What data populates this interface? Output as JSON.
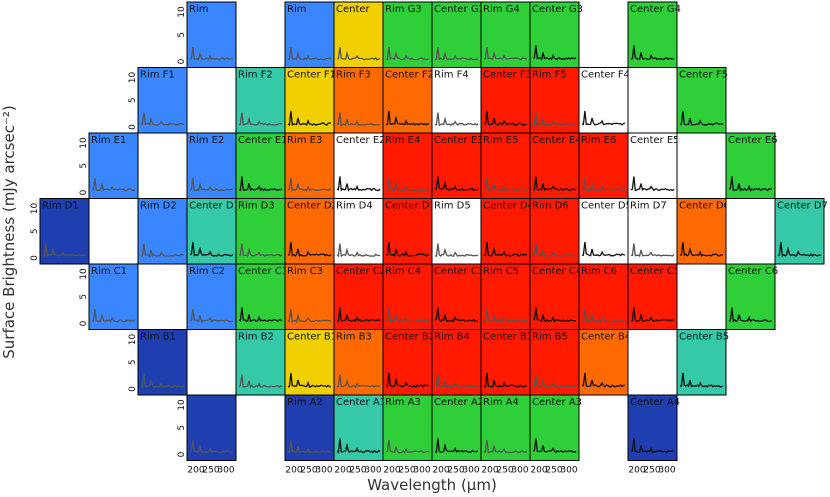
{
  "chart_data": {
    "type": "grid-of-spectra",
    "background": "surface-brightness map",
    "xlabel": "Wavelength (μm)",
    "ylabel": "Surface Brightness (mJy arcsec⁻²)",
    "x_ticks": [
      "200",
      "250",
      "300"
    ],
    "y_ticks": [
      "0",
      "5",
      "10"
    ],
    "panel_colors": {
      "red": "#ff1a00",
      "orange": "#ff6a00",
      "yellow": "#f0d000",
      "green": "#2fcf3a",
      "cyan": "#35c9a8",
      "blue": "#3a86ff",
      "darkblue": "#1f3fb0",
      "white": "#ffffff"
    },
    "panels": [
      {
        "label": "Rim",
        "row": 0,
        "col": 3,
        "color": "blue",
        "spectrum": "gray"
      },
      {
        "label": "Rim",
        "row": 0,
        "col": 5,
        "color": "blue",
        "spectrum": "gray"
      },
      {
        "label": "Center",
        "row": 0,
        "col": 6,
        "color": "yellow",
        "spectrum": "gray"
      },
      {
        "label": "Rim G3",
        "row": 0,
        "col": 7,
        "color": "green",
        "spectrum": "gray"
      },
      {
        "label": "Center G2",
        "row": 0,
        "col": 8,
        "color": "green",
        "spectrum": "gray"
      },
      {
        "label": "Rim G4",
        "row": 0,
        "col": 9,
        "color": "green",
        "spectrum": "gray"
      },
      {
        "label": "Center G3",
        "row": 0,
        "col": 10,
        "color": "green",
        "spectrum": "black"
      },
      {
        "label": "Center G4",
        "row": 0,
        "col": 12,
        "color": "green",
        "spectrum": "black"
      },
      {
        "label": "Rim F1",
        "row": 1,
        "col": 2,
        "color": "blue",
        "spectrum": "gray"
      },
      {
        "label": "Rim F2",
        "row": 1,
        "col": 4,
        "color": "cyan",
        "spectrum": "gray"
      },
      {
        "label": "Center F1",
        "row": 1,
        "col": 5,
        "color": "yellow",
        "spectrum": "black"
      },
      {
        "label": "Rim F3",
        "row": 1,
        "col": 6,
        "color": "orange",
        "spectrum": "gray"
      },
      {
        "label": "Center F2",
        "row": 1,
        "col": 7,
        "color": "orange",
        "spectrum": "black"
      },
      {
        "label": "Rim F4",
        "row": 1,
        "col": 8,
        "color": "white",
        "spectrum": "gray"
      },
      {
        "label": "Center F3",
        "row": 1,
        "col": 9,
        "color": "red",
        "spectrum": "black"
      },
      {
        "label": "Rim F5",
        "row": 1,
        "col": 10,
        "color": "red",
        "spectrum": "gray"
      },
      {
        "label": "Center F4",
        "row": 1,
        "col": 11,
        "color": "white",
        "spectrum": "black"
      },
      {
        "label": "Center F5",
        "row": 1,
        "col": 13,
        "color": "green",
        "spectrum": "black"
      },
      {
        "label": "Rim E1",
        "row": 2,
        "col": 1,
        "color": "blue",
        "spectrum": "gray"
      },
      {
        "label": "Rim E2",
        "row": 2,
        "col": 3,
        "color": "blue",
        "spectrum": "gray"
      },
      {
        "label": "Center E1",
        "row": 2,
        "col": 4,
        "color": "green",
        "spectrum": "black"
      },
      {
        "label": "Rim E3",
        "row": 2,
        "col": 5,
        "color": "orange",
        "spectrum": "gray"
      },
      {
        "label": "Center E2",
        "row": 2,
        "col": 6,
        "color": "white",
        "spectrum": "black"
      },
      {
        "label": "Rim E4",
        "row": 2,
        "col": 7,
        "color": "red",
        "spectrum": "gray"
      },
      {
        "label": "Center E3",
        "row": 2,
        "col": 8,
        "color": "red",
        "spectrum": "black"
      },
      {
        "label": "Rim E5",
        "row": 2,
        "col": 9,
        "color": "red",
        "spectrum": "gray"
      },
      {
        "label": "Center E4",
        "row": 2,
        "col": 10,
        "color": "red",
        "spectrum": "black"
      },
      {
        "label": "Rim E6",
        "row": 2,
        "col": 11,
        "color": "red",
        "spectrum": "gray"
      },
      {
        "label": "Center E5",
        "row": 2,
        "col": 12,
        "color": "white",
        "spectrum": "black"
      },
      {
        "label": "Center E6",
        "row": 2,
        "col": 14,
        "color": "green",
        "spectrum": "black"
      },
      {
        "label": "Rim D1",
        "row": 3,
        "col": 0,
        "color": "darkblue",
        "spectrum": "gray"
      },
      {
        "label": "Rim D2",
        "row": 3,
        "col": 2,
        "color": "blue",
        "spectrum": "gray"
      },
      {
        "label": "Center D1",
        "row": 3,
        "col": 3,
        "color": "cyan",
        "spectrum": "black"
      },
      {
        "label": "Rim D3",
        "row": 3,
        "col": 4,
        "color": "green",
        "spectrum": "gray"
      },
      {
        "label": "Center D2",
        "row": 3,
        "col": 5,
        "color": "orange",
        "spectrum": "black"
      },
      {
        "label": "Rim D4",
        "row": 3,
        "col": 6,
        "color": "white",
        "spectrum": "gray"
      },
      {
        "label": "Center D3",
        "row": 3,
        "col": 7,
        "color": "red",
        "spectrum": "black"
      },
      {
        "label": "Rim D5",
        "row": 3,
        "col": 8,
        "color": "white",
        "spectrum": "gray"
      },
      {
        "label": "Center D4",
        "row": 3,
        "col": 9,
        "color": "red",
        "spectrum": "black"
      },
      {
        "label": "Rim D6",
        "row": 3,
        "col": 10,
        "color": "red",
        "spectrum": "gray"
      },
      {
        "label": "Center D5",
        "row": 3,
        "col": 11,
        "color": "white",
        "spectrum": "black"
      },
      {
        "label": "Rim D7",
        "row": 3,
        "col": 12,
        "color": "white",
        "spectrum": "gray"
      },
      {
        "label": "Center D6",
        "row": 3,
        "col": 13,
        "color": "orange",
        "spectrum": "black"
      },
      {
        "label": "Center D7",
        "row": 3,
        "col": 15,
        "color": "cyan",
        "spectrum": "black"
      },
      {
        "label": "Rim C1",
        "row": 4,
        "col": 1,
        "color": "blue",
        "spectrum": "gray"
      },
      {
        "label": "Rim C2",
        "row": 4,
        "col": 3,
        "color": "blue",
        "spectrum": "gray"
      },
      {
        "label": "Center C1",
        "row": 4,
        "col": 4,
        "color": "green",
        "spectrum": "black"
      },
      {
        "label": "Rim C3",
        "row": 4,
        "col": 5,
        "color": "orange",
        "spectrum": "gray"
      },
      {
        "label": "Center C2",
        "row": 4,
        "col": 6,
        "color": "red",
        "spectrum": "black"
      },
      {
        "label": "Rim C4",
        "row": 4,
        "col": 7,
        "color": "red",
        "spectrum": "gray"
      },
      {
        "label": "Center C3",
        "row": 4,
        "col": 8,
        "color": "red",
        "spectrum": "black"
      },
      {
        "label": "Rim C5",
        "row": 4,
        "col": 9,
        "color": "red",
        "spectrum": "gray"
      },
      {
        "label": "Center C4",
        "row": 4,
        "col": 10,
        "color": "red",
        "spectrum": "black"
      },
      {
        "label": "Rim C6",
        "row": 4,
        "col": 11,
        "color": "red",
        "spectrum": "gray"
      },
      {
        "label": "Center C5",
        "row": 4,
        "col": 12,
        "color": "red",
        "spectrum": "black"
      },
      {
        "label": "Center C6",
        "row": 4,
        "col": 14,
        "color": "green",
        "spectrum": "black"
      },
      {
        "label": "Rim B1",
        "row": 5,
        "col": 2,
        "color": "darkblue",
        "spectrum": "gray"
      },
      {
        "label": "Rim B2",
        "row": 5,
        "col": 4,
        "color": "cyan",
        "spectrum": "gray"
      },
      {
        "label": "Center B1",
        "row": 5,
        "col": 5,
        "color": "yellow",
        "spectrum": "black"
      },
      {
        "label": "Rim B3",
        "row": 5,
        "col": 6,
        "color": "orange",
        "spectrum": "gray"
      },
      {
        "label": "Center B2",
        "row": 5,
        "col": 7,
        "color": "red",
        "spectrum": "black"
      },
      {
        "label": "Rim B4",
        "row": 5,
        "col": 8,
        "color": "red",
        "spectrum": "gray"
      },
      {
        "label": "Center B3",
        "row": 5,
        "col": 9,
        "color": "red",
        "spectrum": "black"
      },
      {
        "label": "Rim B5",
        "row": 5,
        "col": 10,
        "color": "red",
        "spectrum": "gray"
      },
      {
        "label": "Center B4",
        "row": 5,
        "col": 11,
        "color": "orange",
        "spectrum": "black"
      },
      {
        "label": "Center B5",
        "row": 5,
        "col": 13,
        "color": "cyan",
        "spectrum": "black"
      },
      {
        "label": "",
        "row": 6,
        "col": 3,
        "color": "darkblue",
        "spectrum": "gray"
      },
      {
        "label": "Rim A2",
        "row": 6,
        "col": 5,
        "color": "darkblue",
        "spectrum": "gray"
      },
      {
        "label": "Center A1",
        "row": 6,
        "col": 6,
        "color": "cyan",
        "spectrum": "black"
      },
      {
        "label": "Rim A3",
        "row": 6,
        "col": 7,
        "color": "green",
        "spectrum": "gray"
      },
      {
        "label": "Center A2",
        "row": 6,
        "col": 8,
        "color": "green",
        "spectrum": "black"
      },
      {
        "label": "Rim A4",
        "row": 6,
        "col": 9,
        "color": "green",
        "spectrum": "gray"
      },
      {
        "label": "Center A3",
        "row": 6,
        "col": 10,
        "color": "green",
        "spectrum": "black"
      },
      {
        "label": "Center A4",
        "row": 6,
        "col": 12,
        "color": "darkblue",
        "spectrum": "black"
      }
    ],
    "blank_panels": [
      {
        "row": 1,
        "col": 3
      },
      {
        "row": 1,
        "col": 12
      },
      {
        "row": 2,
        "col": 2
      },
      {
        "row": 2,
        "col": 13
      },
      {
        "row": 3,
        "col": 1
      },
      {
        "row": 3,
        "col": 14
      },
      {
        "row": 4,
        "col": 2
      },
      {
        "row": 4,
        "col": 13
      },
      {
        "row": 5,
        "col": 3
      },
      {
        "row": 5,
        "col": 12
      }
    ],
    "y_axis_rows": [
      [
        0,
        3
      ],
      [
        1,
        2
      ],
      [
        2,
        1
      ],
      [
        3,
        0
      ],
      [
        4,
        1
      ],
      [
        5,
        2
      ],
      [
        6,
        3
      ]
    ],
    "x_axis_cols": [
      3,
      5,
      6,
      7,
      8,
      9,
      10,
      12
    ]
  }
}
